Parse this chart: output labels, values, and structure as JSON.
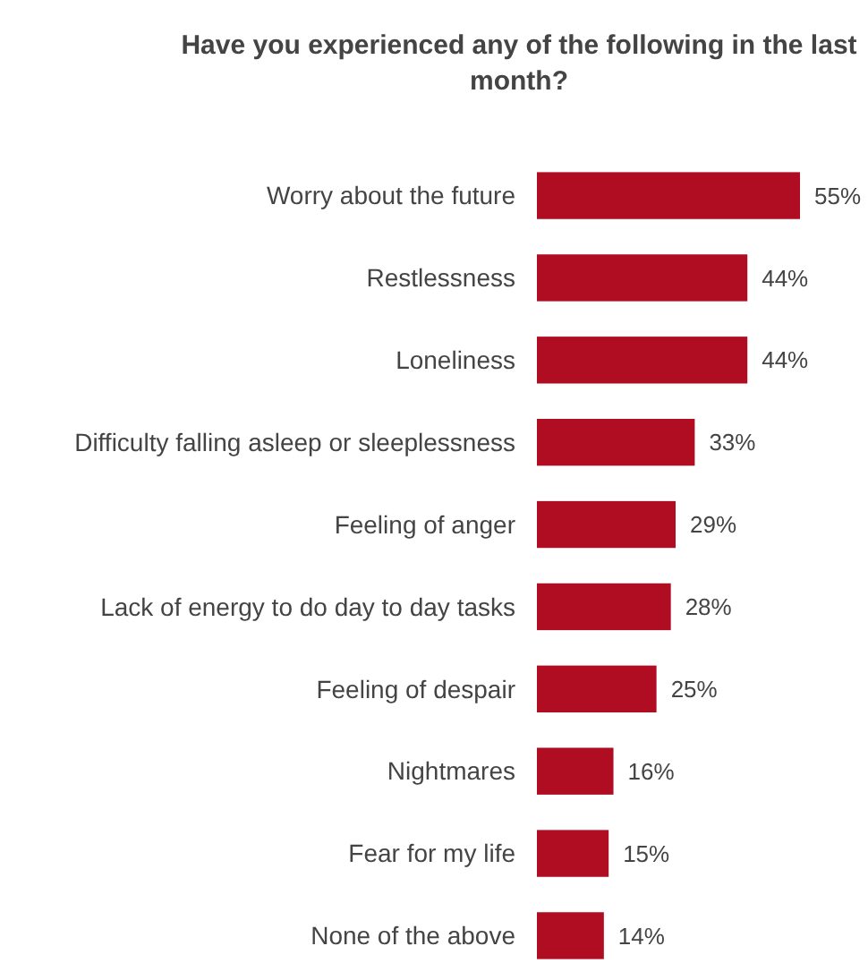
{
  "chart_data": {
    "type": "bar",
    "orientation": "horizontal",
    "title": "Have you experienced any of the following in the last month?",
    "categories": [
      "Worry about the future",
      "Restlessness",
      "Loneliness",
      "Difficulty falling asleep or sleeplessness",
      "Feeling of anger",
      "Lack of energy to do day to day tasks",
      "Feeling of despair",
      "Nightmares",
      "Fear for my life",
      "None of the above"
    ],
    "values": [
      55,
      44,
      44,
      33,
      29,
      28,
      25,
      16,
      15,
      14
    ],
    "value_labels": [
      "55%",
      "44%",
      "44%",
      "33%",
      "29%",
      "28%",
      "25%",
      "16%",
      "15%",
      "14%"
    ],
    "color": "#b00d23"
  }
}
